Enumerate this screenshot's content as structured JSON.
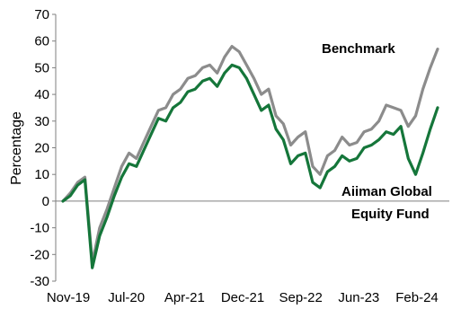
{
  "chart_data": {
    "type": "line",
    "ylabel": "Percentage",
    "ylim": [
      -30,
      70
    ],
    "yticks": [
      "70",
      "60",
      "50",
      "40",
      "30",
      "20",
      "10",
      "0",
      "-10",
      "-20",
      "-30"
    ],
    "xtick_labels": [
      "Nov-19",
      "Jul-20",
      "Apr-21",
      "Dec-21",
      "Sep-22",
      "Jun-23",
      "Feb-24"
    ],
    "grid": false,
    "legend": "none",
    "annotations": [
      {
        "text": "Benchmark",
        "series": "Benchmark"
      },
      {
        "text": "Aiiman Global",
        "series": "Aiiman Global Equity Fund"
      },
      {
        "text": "Equity Fund",
        "series": "Aiiman Global Equity Fund"
      }
    ],
    "series": [
      {
        "name": "Benchmark",
        "color": "#8c8c8c",
        "x": [
          "2019-11",
          "2019-12",
          "2020-01",
          "2020-02",
          "2020-03",
          "2020-04",
          "2020-05",
          "2020-06",
          "2020-07",
          "2020-08",
          "2020-09",
          "2020-10",
          "2020-11",
          "2020-12",
          "2021-01",
          "2021-02",
          "2021-03",
          "2021-04",
          "2021-05",
          "2021-06",
          "2021-07",
          "2021-08",
          "2021-09",
          "2021-10",
          "2021-11",
          "2021-12",
          "2022-01",
          "2022-02",
          "2022-03",
          "2022-04",
          "2022-05",
          "2022-06",
          "2022-07",
          "2022-08",
          "2022-09",
          "2022-10",
          "2022-11",
          "2022-12",
          "2023-01",
          "2023-02",
          "2023-03",
          "2023-04",
          "2023-05",
          "2023-06",
          "2023-07",
          "2023-08",
          "2023-09",
          "2023-10",
          "2023-11",
          "2023-12",
          "2024-01",
          "2024-02"
        ],
        "values": [
          0,
          3,
          7,
          9,
          -23,
          -10,
          -3,
          5,
          13,
          18,
          16,
          22,
          28,
          34,
          35,
          40,
          42,
          46,
          47,
          50,
          51,
          48,
          54,
          58,
          56,
          51,
          46,
          40,
          42,
          32,
          29,
          21,
          24,
          26,
          13,
          10,
          17,
          19,
          24,
          21,
          22,
          26,
          27,
          30,
          36,
          35,
          34,
          28,
          32,
          42,
          50,
          57
        ]
      },
      {
        "name": "Aiiman Global Equity Fund",
        "color": "#15763a",
        "x": [
          "2019-11",
          "2019-12",
          "2020-01",
          "2020-02",
          "2020-03",
          "2020-04",
          "2020-05",
          "2020-06",
          "2020-07",
          "2020-08",
          "2020-09",
          "2020-10",
          "2020-11",
          "2020-12",
          "2021-01",
          "2021-02",
          "2021-03",
          "2021-04",
          "2021-05",
          "2021-06",
          "2021-07",
          "2021-08",
          "2021-09",
          "2021-10",
          "2021-11",
          "2021-12",
          "2022-01",
          "2022-02",
          "2022-03",
          "2022-04",
          "2022-05",
          "2022-06",
          "2022-07",
          "2022-08",
          "2022-09",
          "2022-10",
          "2022-11",
          "2022-12",
          "2023-01",
          "2023-02",
          "2023-03",
          "2023-04",
          "2023-05",
          "2023-06",
          "2023-07",
          "2023-08",
          "2023-09",
          "2023-10",
          "2023-11",
          "2023-12",
          "2024-01",
          "2024-02"
        ],
        "values": [
          0,
          2,
          6,
          8,
          -25,
          -13,
          -6,
          2,
          9,
          14,
          13,
          19,
          25,
          31,
          30,
          35,
          37,
          41,
          42,
          45,
          46,
          43,
          48,
          51,
          50,
          46,
          40,
          34,
          36,
          27,
          23,
          14,
          17,
          18,
          7,
          5,
          11,
          13,
          17,
          15,
          16,
          20,
          21,
          23,
          26,
          25,
          28,
          16,
          10,
          18,
          27,
          35
        ]
      }
    ]
  }
}
